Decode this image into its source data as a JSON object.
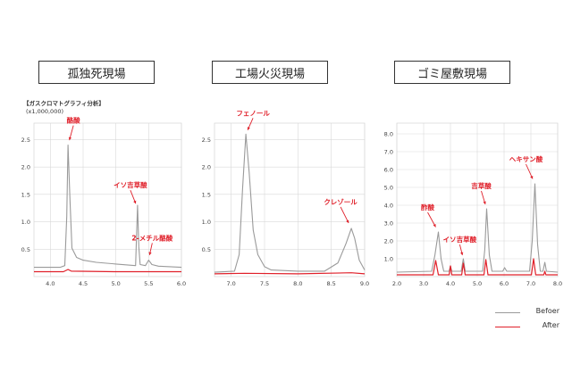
{
  "header": {
    "ylabel": "【ガスクロマトグラフィ分析】",
    "yunit": "(x1,000,000)"
  },
  "legend": {
    "before": "Befoer",
    "after": "After"
  },
  "colors": {
    "before": "#9a9a9a",
    "after": "#e0202a",
    "grid": "#d9d9d9",
    "annotation": "#e0202a"
  },
  "chart_data": [
    {
      "type": "line",
      "title": "孤独死現場",
      "xlim": [
        3.75,
        6.0
      ],
      "ylim": [
        0,
        2.8
      ],
      "xticks": [
        "4.0",
        "4.5",
        "5.0",
        "5.5",
        "6.0"
      ],
      "yticks": [
        "0.5",
        "1.0",
        "1.5",
        "2.0",
        "2.5"
      ],
      "series": [
        {
          "name": "Befoer",
          "points": [
            [
              3.75,
              0.17
            ],
            [
              4.15,
              0.17
            ],
            [
              4.22,
              0.2
            ],
            [
              4.25,
              1.1
            ],
            [
              4.27,
              2.4
            ],
            [
              4.3,
              1.4
            ],
            [
              4.33,
              0.52
            ],
            [
              4.4,
              0.35
            ],
            [
              4.5,
              0.3
            ],
            [
              4.7,
              0.26
            ],
            [
              5.0,
              0.23
            ],
            [
              5.3,
              0.2
            ],
            [
              5.33,
              1.3
            ],
            [
              5.35,
              0.55
            ],
            [
              5.37,
              0.22
            ],
            [
              5.45,
              0.2
            ],
            [
              5.5,
              0.3
            ],
            [
              5.55,
              0.22
            ],
            [
              5.65,
              0.19
            ],
            [
              6.0,
              0.17
            ]
          ]
        },
        {
          "name": "After",
          "points": [
            [
              3.75,
              0.09
            ],
            [
              4.2,
              0.09
            ],
            [
              4.27,
              0.13
            ],
            [
              4.32,
              0.1
            ],
            [
              5.0,
              0.09
            ],
            [
              6.0,
              0.09
            ]
          ]
        }
      ],
      "annotations": [
        {
          "text": "酪酸",
          "x": 4.27,
          "y": 2.4
        },
        {
          "text": "イソ吉草酸",
          "x": 5.33,
          "y": 1.25
        },
        {
          "text": "2-メチル酪酸",
          "x": 5.5,
          "y": 0.32
        }
      ]
    },
    {
      "type": "line",
      "title": "工場火災現場",
      "xlim": [
        6.75,
        9.0
      ],
      "ylim": [
        0,
        2.8
      ],
      "xticks": [
        "7.0",
        "7.5",
        "8.0",
        "8.5",
        "9.0"
      ],
      "yticks": [
        "0.5",
        "1.0",
        "1.5",
        "2.0",
        "2.5"
      ],
      "series": [
        {
          "name": "Befoer",
          "points": [
            [
              6.75,
              0.08
            ],
            [
              7.05,
              0.1
            ],
            [
              7.12,
              0.4
            ],
            [
              7.17,
              1.6
            ],
            [
              7.22,
              2.6
            ],
            [
              7.27,
              1.9
            ],
            [
              7.33,
              0.85
            ],
            [
              7.4,
              0.4
            ],
            [
              7.5,
              0.18
            ],
            [
              7.6,
              0.12
            ],
            [
              8.0,
              0.1
            ],
            [
              8.4,
              0.1
            ],
            [
              8.6,
              0.25
            ],
            [
              8.72,
              0.6
            ],
            [
              8.8,
              0.88
            ],
            [
              8.85,
              0.7
            ],
            [
              8.92,
              0.3
            ],
            [
              9.0,
              0.12
            ]
          ]
        },
        {
          "name": "After",
          "points": [
            [
              6.75,
              0.05
            ],
            [
              7.2,
              0.06
            ],
            [
              8.0,
              0.05
            ],
            [
              8.8,
              0.07
            ],
            [
              9.0,
              0.05
            ]
          ]
        }
      ],
      "annotations": [
        {
          "text": "フェノール",
          "x": 7.22,
          "y": 2.6
        },
        {
          "text": "クレゾール",
          "x": 8.8,
          "y": 0.88
        }
      ]
    },
    {
      "type": "line",
      "title": "ゴミ屋敷現場",
      "xlim": [
        2.0,
        8.0
      ],
      "ylim": [
        0,
        8.6
      ],
      "xticks": [
        "2.0",
        "3.0",
        "4.0",
        "5.0",
        "6.0",
        "7.0",
        "8.0"
      ],
      "yticks": [
        "1.0",
        "2.0",
        "3.0",
        "4.0",
        "5.0",
        "6.0",
        "7.0",
        "8.0"
      ],
      "series": [
        {
          "name": "Befoer",
          "points": [
            [
              2.0,
              0.25
            ],
            [
              3.3,
              0.3
            ],
            [
              3.42,
              1.2
            ],
            [
              3.55,
              2.5
            ],
            [
              3.65,
              1.0
            ],
            [
              3.75,
              0.3
            ],
            [
              3.95,
              0.3
            ],
            [
              4.0,
              0.6
            ],
            [
              4.05,
              0.3
            ],
            [
              4.4,
              0.3
            ],
            [
              4.48,
              1.0
            ],
            [
              4.55,
              0.3
            ],
            [
              5.2,
              0.3
            ],
            [
              5.28,
              1.5
            ],
            [
              5.35,
              3.8
            ],
            [
              5.45,
              1.2
            ],
            [
              5.55,
              0.3
            ],
            [
              5.95,
              0.3
            ],
            [
              6.02,
              0.5
            ],
            [
              6.1,
              0.3
            ],
            [
              6.95,
              0.3
            ],
            [
              7.05,
              2.0
            ],
            [
              7.15,
              5.2
            ],
            [
              7.25,
              1.8
            ],
            [
              7.35,
              0.3
            ],
            [
              7.45,
              0.3
            ],
            [
              7.52,
              0.8
            ],
            [
              7.58,
              0.3
            ],
            [
              8.0,
              0.25
            ]
          ]
        },
        {
          "name": "After",
          "points": [
            [
              2.0,
              0.1
            ],
            [
              3.35,
              0.1
            ],
            [
              3.45,
              0.9
            ],
            [
              3.55,
              0.1
            ],
            [
              3.95,
              0.1
            ],
            [
              4.0,
              0.6
            ],
            [
              4.05,
              0.1
            ],
            [
              4.42,
              0.1
            ],
            [
              4.48,
              0.75
            ],
            [
              4.55,
              0.1
            ],
            [
              5.25,
              0.1
            ],
            [
              5.32,
              0.95
            ],
            [
              5.4,
              0.1
            ],
            [
              7.02,
              0.1
            ],
            [
              7.1,
              1.0
            ],
            [
              7.18,
              0.1
            ],
            [
              7.48,
              0.1
            ],
            [
              7.52,
              0.3
            ],
            [
              7.56,
              0.1
            ],
            [
              8.0,
              0.1
            ]
          ]
        }
      ],
      "annotations": [
        {
          "text": "酢酸",
          "x": 3.55,
          "y": 2.5
        },
        {
          "text": "イソ吉草酸",
          "x": 4.48,
          "y": 1.0
        },
        {
          "text": "吉草酸",
          "x": 5.35,
          "y": 3.8
        },
        {
          "text": "ヘキサン酸",
          "x": 7.15,
          "y": 5.2
        }
      ]
    }
  ]
}
